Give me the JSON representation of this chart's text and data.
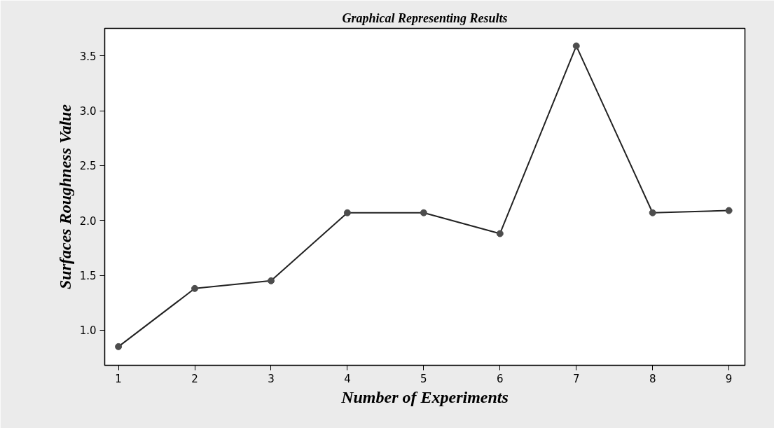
{
  "chart_data": {
    "type": "line",
    "title": "Graphical Representing Results",
    "xlabel": "Number of Experiments",
    "ylabel": "Surfaces Roughness Value",
    "x": [
      1,
      2,
      3,
      4,
      5,
      6,
      7,
      8,
      9
    ],
    "series": [
      {
        "color": "#222222",
        "values": [
          0.85,
          1.38,
          1.45,
          2.07,
          2.07,
          1.88,
          3.59,
          2.07,
          2.09
        ]
      }
    ],
    "xlim": [
      0.82,
      9.21
    ],
    "ylim": [
      0.68,
      3.75
    ],
    "xticks": [
      1,
      2,
      3,
      4,
      5,
      6,
      7,
      8,
      9
    ],
    "yticks": [
      {
        "value": 1.0,
        "label": "1.0"
      },
      {
        "value": 1.5,
        "label": "1.5"
      },
      {
        "value": 2.0,
        "label": "2.0"
      },
      {
        "value": 2.5,
        "label": "2.5"
      },
      {
        "value": 3.0,
        "label": "3.0"
      },
      {
        "value": 3.5,
        "label": "3.5"
      }
    ],
    "marker": "circle",
    "line_style": "solid",
    "grid": false
  }
}
